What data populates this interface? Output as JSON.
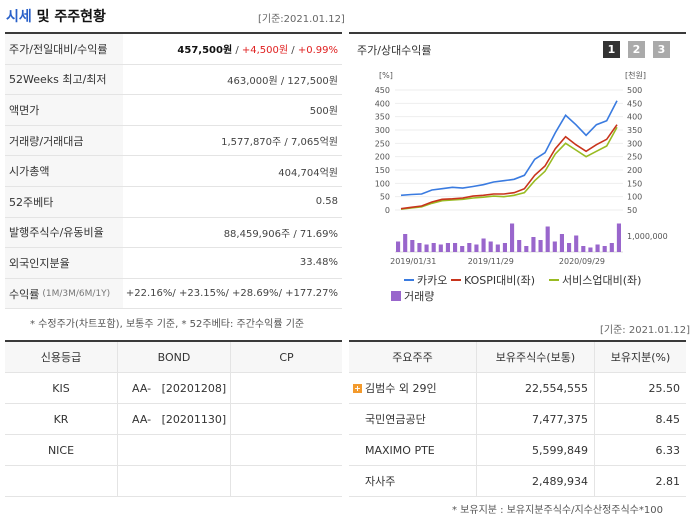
{
  "header": {
    "title_part1": "시세",
    "title_part2": "및 주주현황",
    "base_date": "[기준:2021.01.12]"
  },
  "quote": {
    "rows": [
      {
        "label": "주가/전일대비/수익률",
        "price": "457,500원",
        "sep1": " / ",
        "change": "+4,500원",
        "sep2": " / ",
        "rate": "+0.99%"
      },
      {
        "label": "52Weeks 최고/최저",
        "value": "463,000원 / 127,500원"
      },
      {
        "label": "액면가",
        "value": "500원"
      },
      {
        "label": "거래량/거래대금",
        "value": "1,577,870주 / 7,065억원"
      },
      {
        "label": "시가총액",
        "value": "404,704억원"
      },
      {
        "label": "52주베타",
        "value": "0.58"
      },
      {
        "label": "발행주식수/유동비율",
        "value": "88,459,906주 / 71.69%"
      },
      {
        "label": "외국인지분율",
        "value": "33.48%"
      },
      {
        "label": "수익률",
        "label_small": "(1M/3M/6M/1Y)",
        "r1": "+22.16%",
        "r2": "+23.15%",
        "r3": "+28.69%",
        "r4": "+177.27%"
      }
    ],
    "note": "* 수정주가(차트포함), 보통주 기준, * 52주베타: 주간수익률 기준"
  },
  "chart_panel": {
    "title": "주가/상대수익률",
    "pages": [
      "1",
      "2",
      "3"
    ],
    "colors": {
      "active": "#333333",
      "inactive": "#aaaaaa",
      "kakao": "#3a7be0",
      "kospi": "#c8341c",
      "service": "#99bb22",
      "volume": "#9966cc"
    }
  },
  "chart_data": {
    "type": "line",
    "title": "주가/상대수익률",
    "left_axis_unit": "[%]",
    "right_axis_unit": "[천원]",
    "left_ticks": [
      "450",
      "400",
      "350",
      "300",
      "250",
      "200",
      "150",
      "100",
      "50",
      "0"
    ],
    "right_ticks": [
      "500",
      "450",
      "400",
      "350",
      "300",
      "250",
      "200",
      "150",
      "100",
      "50"
    ],
    "volume_tick": "1,000,000",
    "x_labels": [
      "2019/01/31",
      "2019/11/29",
      "2020/09/29"
    ],
    "ylim_left": [
      0,
      450
    ],
    "series": [
      {
        "name": "카카오",
        "values": [
          55,
          58,
          60,
          75,
          80,
          85,
          82,
          88,
          95,
          105,
          110,
          115,
          130,
          190,
          215,
          290,
          355,
          320,
          280,
          320,
          335,
          410
        ]
      },
      {
        "name": "KOSPI대비(좌)",
        "values": [
          5,
          10,
          15,
          30,
          40,
          42,
          45,
          52,
          55,
          60,
          60,
          65,
          80,
          130,
          165,
          230,
          275,
          245,
          220,
          245,
          265,
          320
        ]
      },
      {
        "name": "서비스업대비(좌)",
        "values": [
          3,
          8,
          12,
          25,
          35,
          38,
          40,
          45,
          48,
          52,
          50,
          55,
          65,
          110,
          145,
          210,
          250,
          225,
          200,
          220,
          240,
          310
        ]
      }
    ],
    "volume": {
      "name": "거래량",
      "values": [
        0.35,
        0.6,
        0.4,
        0.3,
        0.25,
        0.3,
        0.25,
        0.3,
        0.3,
        0.2,
        0.3,
        0.25,
        0.45,
        0.35,
        0.25,
        0.3,
        0.95,
        0.4,
        0.2,
        0.5,
        0.4,
        0.85,
        0.35,
        0.6,
        0.3,
        0.55,
        0.2,
        0.15,
        0.25,
        0.2,
        0.3,
        0.95
      ]
    },
    "legend": [
      "카카오",
      "KOSPI대비(좌)",
      "서비스업대비(좌)",
      "거래량"
    ]
  },
  "date2": "[기준: 2021.01.12]",
  "credit": {
    "headers": [
      "신용등급",
      "BOND",
      "CP"
    ],
    "rows": [
      {
        "agency": "KIS",
        "bond": "AA-",
        "date": "[20201208]",
        "cp": ""
      },
      {
        "agency": "KR",
        "bond": "AA-",
        "date": "[20201130]",
        "cp": ""
      },
      {
        "agency": "NICE",
        "bond": "",
        "date": "",
        "cp": ""
      },
      {
        "agency": "",
        "bond": "",
        "date": "",
        "cp": ""
      }
    ]
  },
  "holders": {
    "headers": [
      "주요주주",
      "보유주식수(보통)",
      "보유지분(%)"
    ],
    "rows": [
      {
        "name": "김범수 외 29인",
        "shares": "22,554,555",
        "pct": "25.50",
        "expand": "+"
      },
      {
        "name": "국민연금공단",
        "shares": "7,477,375",
        "pct": "8.45"
      },
      {
        "name": "MAXIMO PTE",
        "shares": "5,599,849",
        "pct": "6.33"
      },
      {
        "name": "자사주",
        "shares": "2,489,934",
        "pct": "2.81"
      }
    ],
    "note": "* 보유지분 : 보유지분주식수/지수산정주식수*100"
  }
}
